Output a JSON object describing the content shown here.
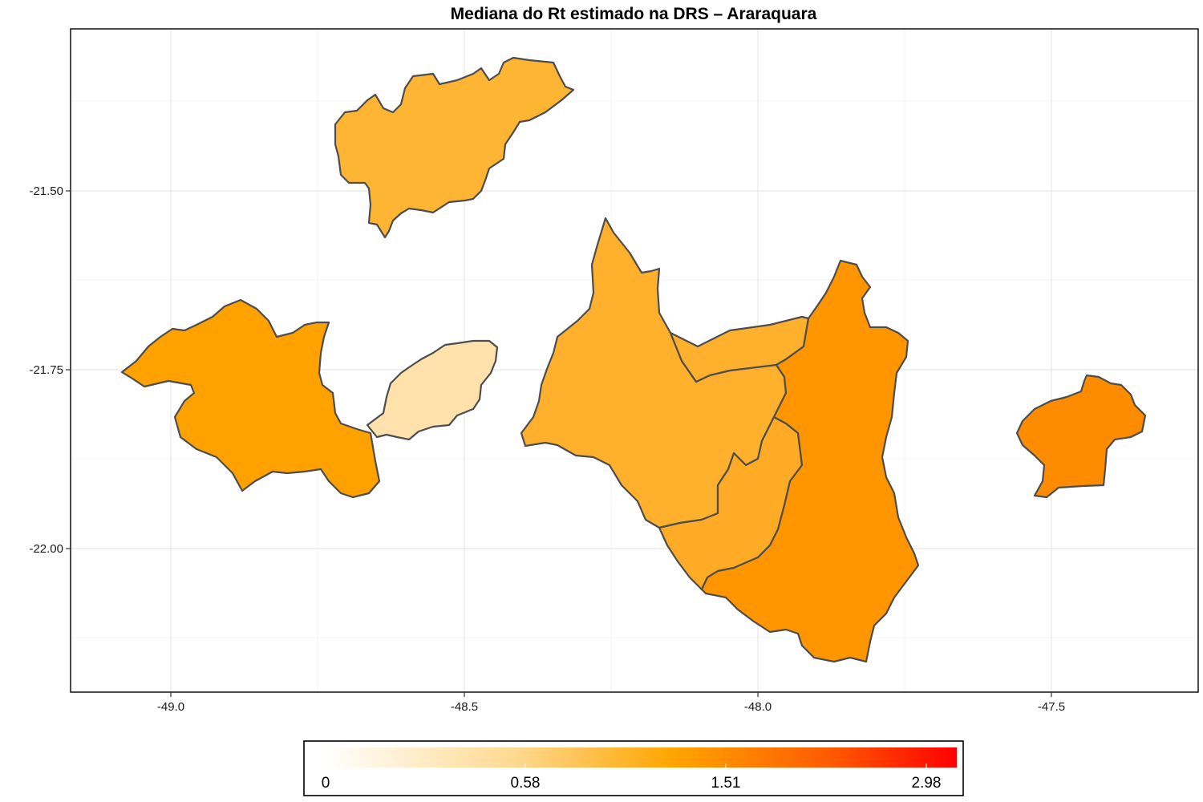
{
  "title": "Mediana do Rt estimado na DRS – Araraquara",
  "axes": {
    "x_ticks": [
      "-49.0",
      "-48.5",
      "-48.0",
      "-47.5"
    ],
    "y_ticks": [
      "-21.50",
      "-21.75",
      "-22.00"
    ]
  },
  "legend": {
    "labels": [
      "0",
      "0.58",
      "1.51",
      "2.98"
    ],
    "colors": [
      "#ffffff",
      "#ffe6b3",
      "#ffa500",
      "#ff4500",
      "#ff0000"
    ]
  },
  "regions": [
    {
      "name": "north-municipality",
      "fill": "#ffb534"
    },
    {
      "name": "west-municipality",
      "fill": "#ffa200"
    },
    {
      "name": "small-central-municipality",
      "fill": "#ffe1ac"
    },
    {
      "name": "central-large-municipality",
      "fill": "#ffb02c"
    },
    {
      "name": "central-north-municipality",
      "fill": "#ffb02c"
    },
    {
      "name": "central-south-municipality",
      "fill": "#ffab26"
    },
    {
      "name": "east-tall-municipality",
      "fill": "#ff9600"
    },
    {
      "name": "far-east-municipality",
      "fill": "#ff8c00"
    }
  ]
}
